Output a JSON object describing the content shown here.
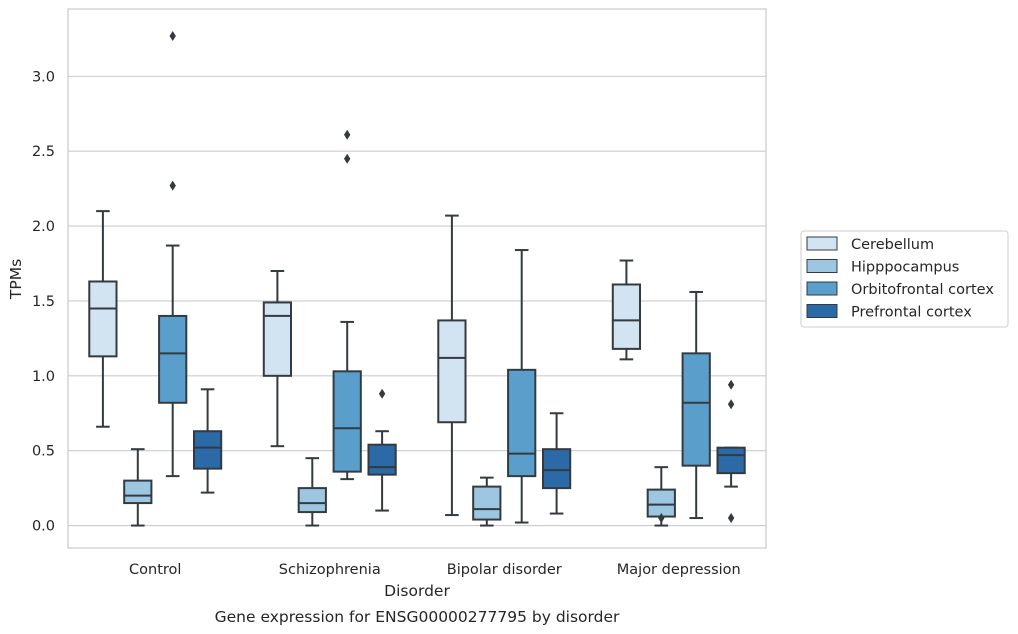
{
  "chart_data": {
    "type": "box",
    "xlabel": "Disorder",
    "ylabel": "TPMs",
    "caption": "Gene expression for ENSG00000277795 by disorder",
    "ylim": [
      -0.15,
      3.45
    ],
    "yticks": [
      "0.0",
      "0.5",
      "1.0",
      "1.5",
      "2.0",
      "2.5",
      "3.0"
    ],
    "grid": "horizontal",
    "legend_placement": "right",
    "categories": [
      "Control",
      "Schizophrenia",
      "Bipolar disorder",
      "Major depression"
    ],
    "series": [
      {
        "name": "Cerebellum",
        "color": "#d2e3f2",
        "boxes": [
          {
            "whislo": 0.66,
            "q1": 1.13,
            "med": 1.45,
            "q3": 1.63,
            "whishi": 2.1,
            "fliers": []
          },
          {
            "whislo": 0.53,
            "q1": 1.0,
            "med": 1.4,
            "q3": 1.49,
            "whishi": 1.7,
            "fliers": []
          },
          {
            "whislo": 0.07,
            "q1": 0.69,
            "med": 1.12,
            "q3": 1.37,
            "whishi": 2.07,
            "fliers": []
          },
          {
            "whislo": 1.11,
            "q1": 1.18,
            "med": 1.37,
            "q3": 1.61,
            "whishi": 1.77,
            "fliers": []
          }
        ]
      },
      {
        "name": "Hipppocampus",
        "color": "#9dc6e0",
        "boxes": [
          {
            "whislo": 0.0,
            "q1": 0.15,
            "med": 0.2,
            "q3": 0.3,
            "whishi": 0.51,
            "fliers": []
          },
          {
            "whislo": 0.0,
            "q1": 0.09,
            "med": 0.15,
            "q3": 0.25,
            "whishi": 0.45,
            "fliers": []
          },
          {
            "whislo": 0.0,
            "q1": 0.04,
            "med": 0.11,
            "q3": 0.26,
            "whishi": 0.32,
            "fliers": []
          },
          {
            "whislo": 0.0,
            "q1": 0.06,
            "med": 0.14,
            "q3": 0.24,
            "whishi": 0.39,
            "fliers": [
              0.05
            ]
          }
        ]
      },
      {
        "name": "Orbitofrontal cortex",
        "color": "#5a9fcc",
        "boxes": [
          {
            "whislo": 0.33,
            "q1": 0.82,
            "med": 1.15,
            "q3": 1.4,
            "whishi": 1.87,
            "fliers": [
              3.27,
              2.27
            ]
          },
          {
            "whislo": 0.31,
            "q1": 0.36,
            "med": 0.65,
            "q3": 1.03,
            "whishi": 1.36,
            "fliers": [
              2.61,
              2.45
            ]
          },
          {
            "whislo": 0.02,
            "q1": 0.33,
            "med": 0.48,
            "q3": 1.04,
            "whishi": 1.84,
            "fliers": []
          },
          {
            "whislo": 0.05,
            "q1": 0.4,
            "med": 0.82,
            "q3": 1.15,
            "whishi": 1.56,
            "fliers": []
          }
        ]
      },
      {
        "name": "Prefrontal cortex",
        "color": "#2b6aa6",
        "boxes": [
          {
            "whislo": 0.22,
            "q1": 0.38,
            "med": 0.52,
            "q3": 0.63,
            "whishi": 0.91,
            "fliers": []
          },
          {
            "whislo": 0.1,
            "q1": 0.34,
            "med": 0.39,
            "q3": 0.54,
            "whishi": 0.63,
            "fliers": [
              0.88
            ]
          },
          {
            "whislo": 0.08,
            "q1": 0.25,
            "med": 0.37,
            "q3": 0.51,
            "whishi": 0.75,
            "fliers": []
          },
          {
            "whislo": 0.26,
            "q1": 0.35,
            "med": 0.47,
            "q3": 0.52,
            "whishi": 0.52,
            "fliers": [
              0.94,
              0.81,
              0.05
            ]
          }
        ]
      }
    ]
  }
}
